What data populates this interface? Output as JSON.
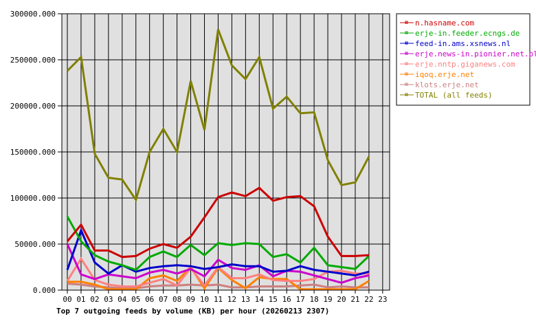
{
  "chart_data": {
    "type": "line",
    "title": "Top 7 outgoing feeds by volume (KB) per hour (20260213 2307)",
    "xlabel": "",
    "ylabel": "",
    "ylim": [
      0,
      300000
    ],
    "grid": true,
    "legend_position": "right",
    "y_ticks": [
      "0.000",
      "50000.000",
      "100000.000",
      "150000.000",
      "200000.000",
      "250000.000",
      "300000.000"
    ],
    "y_tick_values": [
      0,
      50000,
      100000,
      150000,
      200000,
      250000,
      300000
    ],
    "x": [
      "00",
      "01",
      "02",
      "03",
      "04",
      "05",
      "06",
      "07",
      "08",
      "09",
      "10",
      "11",
      "12",
      "13",
      "14",
      "15",
      "16",
      "17",
      "18",
      "19",
      "20",
      "21",
      "22",
      "23"
    ],
    "series": [
      {
        "name": "n.hasname.com",
        "color": "#cc0000",
        "values": [
          53000,
          71000,
          43000,
          43000,
          36000,
          37000,
          45000,
          50000,
          46000,
          58000,
          79000,
          101000,
          106000,
          102000,
          111000,
          97000,
          101000,
          102000,
          91000,
          58000,
          37000,
          37000,
          38000
        ]
      },
      {
        "name": "erje-in.feeder.ecngs.de",
        "color": "#00aa00",
        "values": [
          80000,
          53000,
          38000,
          31000,
          27000,
          22000,
          36000,
          42000,
          36000,
          49000,
          38000,
          51000,
          49000,
          51000,
          50000,
          36000,
          39000,
          30000,
          46000,
          27000,
          25000,
          23000,
          37000
        ]
      },
      {
        "name": "feed-in.ams.xsnews.nl",
        "color": "#0000cc",
        "values": [
          22000,
          65000,
          30000,
          18000,
          27000,
          20000,
          24000,
          26000,
          27000,
          26000,
          23000,
          25000,
          28000,
          26000,
          26000,
          20000,
          21000,
          26000,
          22000,
          20000,
          18000,
          16000,
          20000
        ]
      },
      {
        "name": "erje.news-in.pionier.net.pl",
        "color": "#cc00cc",
        "values": [
          50000,
          17000,
          12000,
          17000,
          15000,
          13000,
          19000,
          22000,
          18000,
          23000,
          15000,
          33000,
          24000,
          22000,
          27000,
          15000,
          21000,
          20000,
          16000,
          12000,
          8000,
          13000,
          16000
        ]
      },
      {
        "name": "erje.nntp.giganews.com",
        "color": "#ff8080",
        "values": [
          10000,
          34000,
          11000,
          6000,
          4000,
          4000,
          8000,
          12000,
          5000,
          24000,
          5000,
          25000,
          13000,
          13000,
          17000,
          11000,
          10000,
          10000,
          12000,
          20000,
          21000,
          18000,
          18000
        ]
      },
      {
        "name": "iqoq.erje.net",
        "color": "#ff8000",
        "values": [
          9000,
          9000,
          6000,
          1000,
          1000,
          1000,
          13000,
          16000,
          10000,
          25000,
          2000,
          24000,
          11000,
          2000,
          14000,
          12000,
          12000,
          1000,
          1000,
          1000,
          1000,
          1000,
          10000
        ]
      },
      {
        "name": "klots.erje.net",
        "color": "#cc8080",
        "values": [
          7000,
          6000,
          4000,
          3000,
          2000,
          2000,
          4000,
          5000,
          5000,
          6000,
          5000,
          6000,
          3000,
          3000,
          4000,
          4000,
          4000,
          5000,
          6000,
          3000,
          4000,
          3000,
          3000
        ]
      },
      {
        "name": "TOTAL (all feeds)",
        "color": "#808000",
        "values": [
          238000,
          253000,
          148000,
          122000,
          120000,
          98000,
          150000,
          175000,
          150000,
          227000,
          174000,
          283000,
          244000,
          229000,
          253000,
          197000,
          210000,
          192000,
          193000,
          141000,
          114000,
          117000,
          145000
        ]
      }
    ]
  },
  "colors": {
    "plot_background": "#e0e0e0",
    "grid": "#000000",
    "page_background": "#ffffff"
  }
}
